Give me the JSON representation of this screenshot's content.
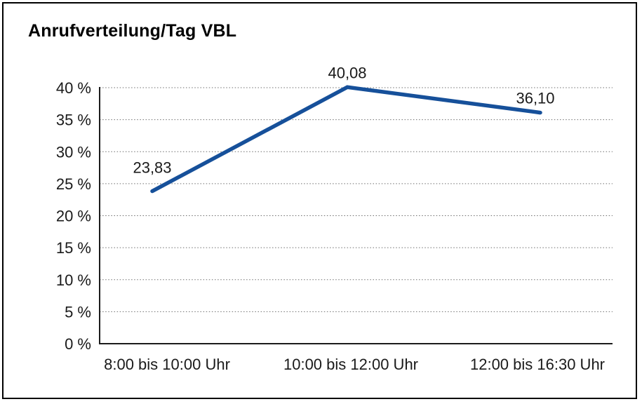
{
  "window": {
    "background": "#ffffff",
    "frame_border_color": "#000000"
  },
  "chart_data": {
    "type": "line",
    "title": "Anrufverteilung/Tag VBL",
    "categories": [
      "8:00 bis 10:00 Uhr",
      "10:00 bis 12:00 Uhr",
      "12:00 bis 16:30 Uhr"
    ],
    "values": [
      23.83,
      40.08,
      36.1
    ],
    "value_labels": [
      "23,83",
      "40,08",
      "36,10"
    ],
    "xlabel": "",
    "ylabel": "",
    "ylim": [
      0,
      40
    ],
    "ytick_step": 5,
    "ytick_labels": [
      "0 %",
      "5 %",
      "10 %",
      "15 %",
      "20 %",
      "25 %",
      "30 %",
      "35 %",
      "40 %"
    ],
    "grid": "dotted-horizontal",
    "legend": "none",
    "line_color": "#16509A",
    "text_color": "#1a1a1a"
  }
}
